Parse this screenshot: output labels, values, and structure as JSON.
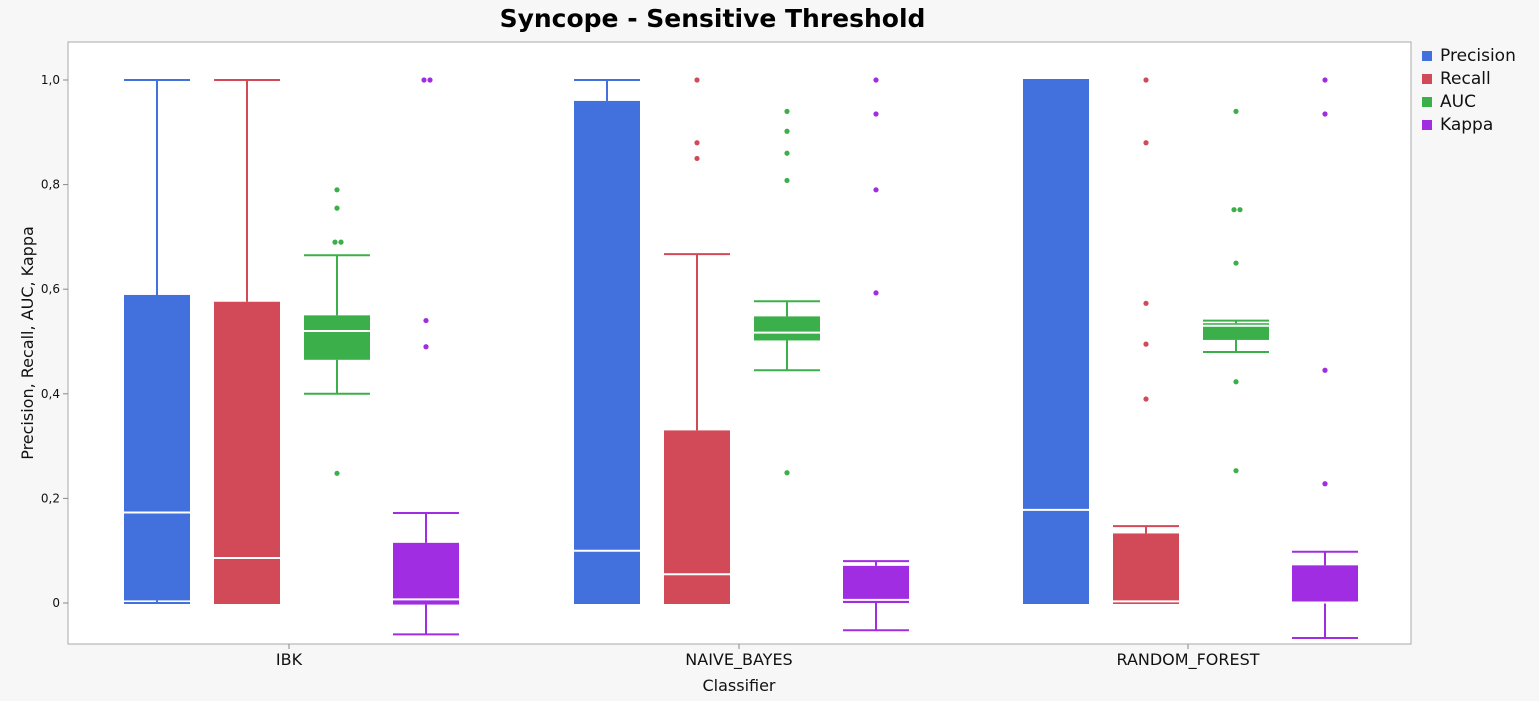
{
  "chart_data": {
    "type": "boxplot",
    "title": "Syncope - Sensitive Threshold",
    "xlabel": "Classifier",
    "ylabel": "Precision, Recall, AUC, Kappa",
    "categories": [
      "IBK",
      "NAIVE_BAYES",
      "RANDOM_FOREST"
    ],
    "ylim": [
      -0.08,
      1.07
    ],
    "yticks": [
      0,
      0.2,
      0.4,
      0.6,
      0.8,
      1.0
    ],
    "ytick_labels": [
      "0",
      "0,2",
      "0,4",
      "0,6",
      "0,8",
      "1,0"
    ],
    "legend_position": "right",
    "series": [
      {
        "name": "Precision",
        "color": "#4270dd",
        "boxes": [
          {
            "min": 0.0,
            "q1": 0.005,
            "median": 0.173,
            "q3": 0.589,
            "max": 1.0,
            "outliers": []
          },
          {
            "min": 0.0,
            "q1": 0.0,
            "median": 0.1,
            "q3": 0.96,
            "max": 1.0,
            "outliers": []
          },
          {
            "min": 0.0,
            "q1": 0.0,
            "median": 0.178,
            "q3": 1.0,
            "max": 1.0,
            "outliers": []
          }
        ]
      },
      {
        "name": "Recall",
        "color": "#d24a58",
        "boxes": [
          {
            "min": 0.0,
            "q1": 0.0,
            "median": 0.086,
            "q3": 0.576,
            "max": 1.0,
            "outliers": []
          },
          {
            "min": 0.0,
            "q1": 0.0,
            "median": 0.055,
            "q3": 0.33,
            "max": 0.667,
            "outliers": [
              0.85,
              0.88,
              1.0
            ]
          },
          {
            "min": 0.0,
            "q1": 0.0,
            "median": 0.003,
            "q3": 0.133,
            "max": 0.147,
            "outliers": [
              0.39,
              0.495,
              0.573,
              0.88,
              1.0
            ]
          }
        ]
      },
      {
        "name": "AUC",
        "color": "#3bb04a",
        "boxes": [
          {
            "min": 0.4,
            "q1": 0.465,
            "median": 0.52,
            "q3": 0.55,
            "max": 0.665,
            "outliers": [
              0.248,
              0.69,
              0.69,
              0.755,
              0.79
            ]
          },
          {
            "min": 0.445,
            "q1": 0.502,
            "median": 0.517,
            "q3": 0.548,
            "max": 0.577,
            "outliers": [
              0.249,
              0.808,
              0.86,
              0.902,
              0.94
            ]
          },
          {
            "min": 0.48,
            "q1": 0.503,
            "median": 0.53,
            "q3": 0.535,
            "max": 0.54,
            "outliers": [
              0.253,
              0.423,
              0.65,
              0.752,
              0.752,
              0.94
            ]
          }
        ]
      },
      {
        "name": "Kappa",
        "color": "#a12de3",
        "boxes": [
          {
            "min": -0.06,
            "q1": -0.003,
            "median": 0.007,
            "q3": 0.115,
            "max": 0.172,
            "outliers": [
              0.49,
              0.54,
              1.0,
              1.0
            ]
          },
          {
            "min": -0.052,
            "q1": 0.0,
            "median": 0.006,
            "q3": 0.071,
            "max": 0.08,
            "outliers": [
              0.593,
              0.79,
              0.935,
              1.0
            ]
          },
          {
            "min": -0.067,
            "q1": 0.0,
            "median": 0.001,
            "q3": 0.072,
            "max": 0.098,
            "outliers": [
              0.228,
              0.445,
              0.935,
              1.0
            ]
          }
        ]
      }
    ]
  }
}
